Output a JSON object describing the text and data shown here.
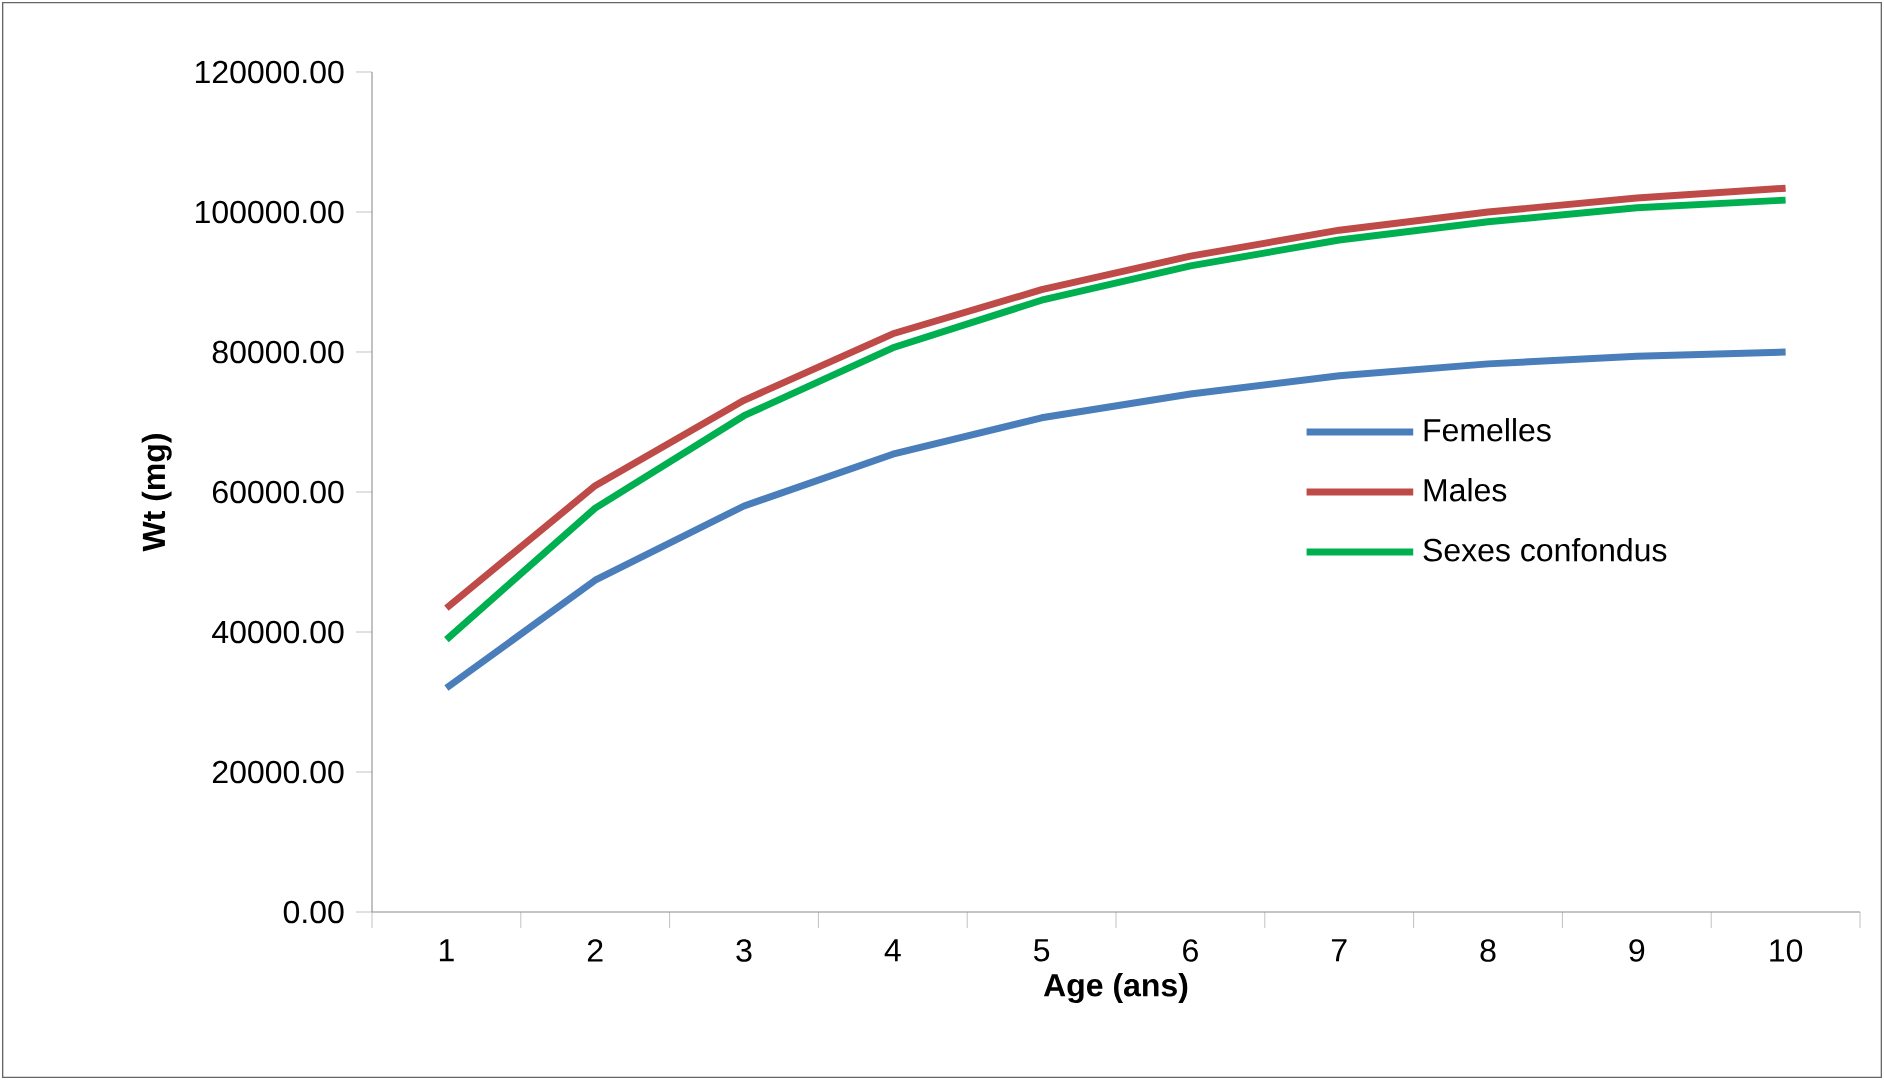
{
  "chart_data": {
    "type": "line",
    "xlabel": "Age (ans)",
    "ylabel": "Wt (mg)",
    "categories": [
      "1",
      "2",
      "3",
      "4",
      "5",
      "6",
      "7",
      "8",
      "9",
      "10"
    ],
    "ylim": [
      0,
      120000
    ],
    "yticks": [
      {
        "value": 0,
        "label": "0.00"
      },
      {
        "value": 20000,
        "label": "20000.00"
      },
      {
        "value": 40000,
        "label": "40000.00"
      },
      {
        "value": 60000,
        "label": "60000.00"
      },
      {
        "value": 80000,
        "label": "80000.00"
      },
      {
        "value": 100000,
        "label": "100000.00"
      },
      {
        "value": 120000,
        "label": "120000.00"
      }
    ],
    "series": [
      {
        "name": "Femelles",
        "color": "#4a7ebb",
        "values": [
          32000,
          47400,
          58000,
          65400,
          70600,
          74000,
          76600,
          78300,
          79400,
          80000
        ]
      },
      {
        "name": "Males",
        "color": "#be4b48",
        "values": [
          43400,
          60900,
          73100,
          82600,
          88900,
          93700,
          97400,
          100000,
          102000,
          103400
        ]
      },
      {
        "name": "Sexes confondus",
        "color": "#00b050",
        "values": [
          38900,
          57700,
          70900,
          80600,
          87400,
          92300,
          96000,
          98600,
          100600,
          101700
        ]
      }
    ],
    "legend": "right",
    "grid": false,
    "marker": "none",
    "line_style": "solid"
  }
}
